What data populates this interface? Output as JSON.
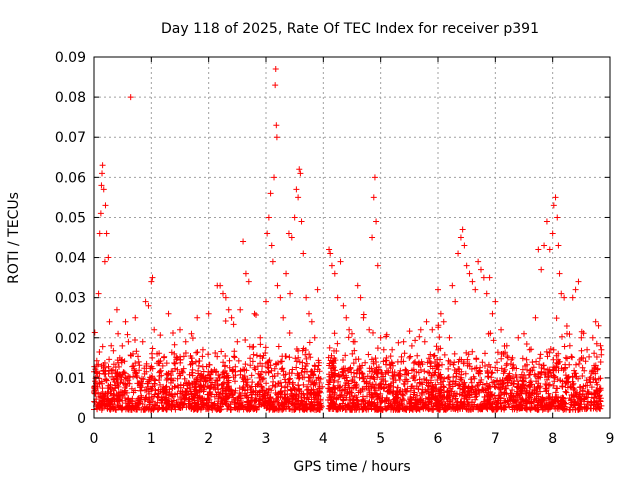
{
  "chart_data": {
    "type": "scatter",
    "title": "Day 118 of 2025, Rate Of TEC Index for receiver p391",
    "xlabel": "GPS time / hours",
    "ylabel": "ROTI / TECUs",
    "xlim": [
      0,
      9
    ],
    "ylim": [
      0,
      0.09
    ],
    "xticks": [
      "0",
      "1",
      "2",
      "3",
      "4",
      "5",
      "6",
      "7",
      "8",
      "9"
    ],
    "yticks": [
      "0",
      "0.01",
      "0.02",
      "0.03",
      "0.04",
      "0.05",
      "0.06",
      "0.07",
      "0.08",
      "0.09"
    ],
    "grid": true,
    "marker": "+",
    "color": "#ff0000",
    "series": [
      {
        "name": "ROTI",
        "points": [
          [
            0.05,
            0.013
          ],
          [
            0.08,
            0.031
          ],
          [
            0.1,
            0.046
          ],
          [
            0.12,
            0.051
          ],
          [
            0.13,
            0.058
          ],
          [
            0.14,
            0.061
          ],
          [
            0.15,
            0.063
          ],
          [
            0.17,
            0.057
          ],
          [
            0.19,
            0.039
          ],
          [
            0.2,
            0.053
          ],
          [
            0.22,
            0.046
          ],
          [
            0.25,
            0.04
          ],
          [
            0.27,
            0.024
          ],
          [
            0.3,
            0.018
          ],
          [
            0.33,
            0.012
          ],
          [
            0.36,
            0.009
          ],
          [
            0.4,
            0.027
          ],
          [
            0.42,
            0.021
          ],
          [
            0.45,
            0.015
          ],
          [
            0.5,
            0.011
          ],
          [
            0.55,
            0.024
          ],
          [
            0.6,
            0.019
          ],
          [
            0.64,
            0.08
          ],
          [
            0.68,
            0.016
          ],
          [
            0.72,
            0.025
          ],
          [
            0.78,
            0.014
          ],
          [
            0.85,
            0.019
          ],
          [
            0.9,
            0.029
          ],
          [
            0.95,
            0.028
          ],
          [
            1.0,
            0.034
          ],
          [
            1.02,
            0.035
          ],
          [
            1.05,
            0.022
          ],
          [
            1.1,
            0.016
          ],
          [
            1.2,
            0.013
          ],
          [
            1.3,
            0.026
          ],
          [
            1.4,
            0.016
          ],
          [
            1.5,
            0.022
          ],
          [
            1.6,
            0.019
          ],
          [
            1.7,
            0.021
          ],
          [
            1.8,
            0.025
          ],
          [
            1.9,
            0.017
          ],
          [
            2.0,
            0.026
          ],
          [
            2.1,
            0.012
          ],
          [
            2.15,
            0.033
          ],
          [
            2.2,
            0.033
          ],
          [
            2.25,
            0.031
          ],
          [
            2.3,
            0.03
          ],
          [
            2.35,
            0.027
          ],
          [
            2.4,
            0.025
          ],
          [
            2.5,
            0.019
          ],
          [
            2.55,
            0.027
          ],
          [
            2.6,
            0.044
          ],
          [
            2.65,
            0.036
          ],
          [
            2.7,
            0.034
          ],
          [
            2.8,
            0.026
          ],
          [
            2.9,
            0.02
          ],
          [
            3.0,
            0.029
          ],
          [
            3.02,
            0.046
          ],
          [
            3.05,
            0.05
          ],
          [
            3.08,
            0.056
          ],
          [
            3.1,
            0.043
          ],
          [
            3.12,
            0.039
          ],
          [
            3.14,
            0.06
          ],
          [
            3.16,
            0.083
          ],
          [
            3.17,
            0.087
          ],
          [
            3.18,
            0.073
          ],
          [
            3.19,
            0.07
          ],
          [
            3.2,
            0.033
          ],
          [
            3.25,
            0.03
          ],
          [
            3.3,
            0.025
          ],
          [
            3.35,
            0.036
          ],
          [
            3.4,
            0.046
          ],
          [
            3.42,
            0.031
          ],
          [
            3.45,
            0.045
          ],
          [
            3.5,
            0.05
          ],
          [
            3.53,
            0.057
          ],
          [
            3.56,
            0.055
          ],
          [
            3.58,
            0.062
          ],
          [
            3.6,
            0.061
          ],
          [
            3.62,
            0.049
          ],
          [
            3.65,
            0.041
          ],
          [
            3.7,
            0.03
          ],
          [
            3.75,
            0.026
          ],
          [
            3.8,
            0.024
          ],
          [
            3.85,
            0.02
          ],
          [
            3.9,
            0.032
          ],
          [
            4.1,
            0.042
          ],
          [
            4.12,
            0.041
          ],
          [
            4.15,
            0.038
          ],
          [
            4.2,
            0.036
          ],
          [
            4.25,
            0.03
          ],
          [
            4.3,
            0.039
          ],
          [
            4.35,
            0.028
          ],
          [
            4.4,
            0.025
          ],
          [
            4.45,
            0.022
          ],
          [
            4.5,
            0.021
          ],
          [
            4.55,
            0.019
          ],
          [
            4.6,
            0.033
          ],
          [
            4.65,
            0.03
          ],
          [
            4.7,
            0.025
          ],
          [
            4.8,
            0.022
          ],
          [
            4.85,
            0.045
          ],
          [
            4.88,
            0.055
          ],
          [
            4.9,
            0.06
          ],
          [
            4.92,
            0.049
          ],
          [
            4.95,
            0.038
          ],
          [
            5.0,
            0.02
          ],
          [
            5.1,
            0.015
          ],
          [
            5.2,
            0.017
          ],
          [
            5.3,
            0.014
          ],
          [
            5.4,
            0.019
          ],
          [
            5.5,
            0.015
          ],
          [
            5.6,
            0.014
          ],
          [
            5.7,
            0.022
          ],
          [
            5.8,
            0.024
          ],
          [
            5.9,
            0.022
          ],
          [
            6.0,
            0.032
          ],
          [
            6.05,
            0.026
          ],
          [
            6.1,
            0.024
          ],
          [
            6.2,
            0.02
          ],
          [
            6.25,
            0.033
          ],
          [
            6.3,
            0.029
          ],
          [
            6.35,
            0.041
          ],
          [
            6.4,
            0.045
          ],
          [
            6.43,
            0.047
          ],
          [
            6.46,
            0.043
          ],
          [
            6.5,
            0.038
          ],
          [
            6.55,
            0.036
          ],
          [
            6.6,
            0.034
          ],
          [
            6.65,
            0.032
          ],
          [
            6.7,
            0.039
          ],
          [
            6.75,
            0.037
          ],
          [
            6.8,
            0.035
          ],
          [
            6.85,
            0.031
          ],
          [
            6.9,
            0.035
          ],
          [
            6.95,
            0.026
          ],
          [
            7.0,
            0.029
          ],
          [
            7.1,
            0.022
          ],
          [
            7.2,
            0.018
          ],
          [
            7.3,
            0.015
          ],
          [
            7.4,
            0.02
          ],
          [
            7.5,
            0.021
          ],
          [
            7.6,
            0.017
          ],
          [
            7.7,
            0.025
          ],
          [
            7.75,
            0.042
          ],
          [
            7.8,
            0.037
          ],
          [
            7.85,
            0.043
          ],
          [
            7.9,
            0.049
          ],
          [
            7.95,
            0.042
          ],
          [
            8.0,
            0.046
          ],
          [
            8.02,
            0.053
          ],
          [
            8.05,
            0.055
          ],
          [
            8.08,
            0.05
          ],
          [
            8.1,
            0.043
          ],
          [
            8.12,
            0.036
          ],
          [
            8.15,
            0.031
          ],
          [
            8.2,
            0.03
          ],
          [
            8.25,
            0.021
          ],
          [
            8.3,
            0.018
          ],
          [
            8.35,
            0.03
          ],
          [
            8.4,
            0.032
          ],
          [
            8.45,
            0.034
          ],
          [
            8.5,
            0.02
          ],
          [
            8.6,
            0.017
          ],
          [
            8.7,
            0.02
          ],
          [
            8.75,
            0.024
          ],
          [
            8.8,
            0.023
          ],
          [
            8.85,
            0.017
          ]
        ]
      }
    ]
  }
}
